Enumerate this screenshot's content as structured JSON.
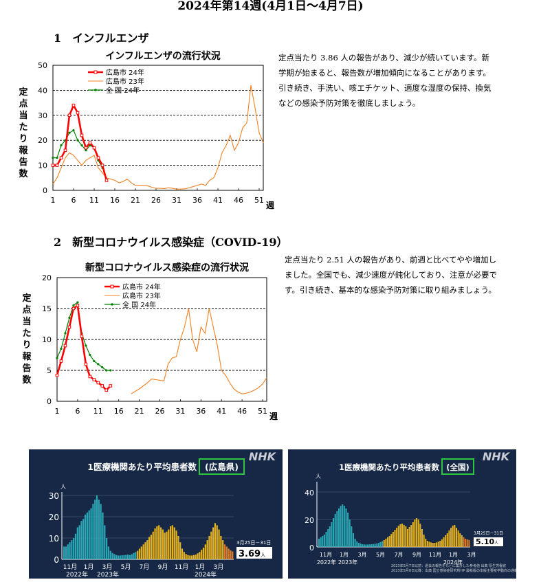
{
  "title": "2024年第14週(4月1日〜4月7日)",
  "section1": {
    "heading": "1　インフルエンザ",
    "paragraph": "定点当たり 3.86 人の報告があり、減少が続いています。新学期が始まると、報告数が増加傾向になることがあります。引き続き、手洗い、咳エチケット、適度な湿度の保持、換気などの感染予防対策を徹底しましょう。"
  },
  "section2": {
    "heading": "2　新型コロナウイルス感染症（COVID-19）",
    "paragraph": "定点当たり 2.51 人の報告があり、前週と比べてやや増加しました。全国でも、減少速度が鈍化しており、注意が必要です。引き続き、基本的な感染予防対策に取り組みましょう。"
  },
  "chart_data": [
    {
      "type": "line",
      "title": "インフルエンザの流行状況",
      "ylabel": "定点当たり報告数",
      "xlabel": "週",
      "ylim": [
        0,
        50
      ],
      "yticks": [
        0,
        10,
        20,
        30,
        40,
        50
      ],
      "xticks": [
        1,
        6,
        11,
        16,
        21,
        26,
        31,
        36,
        41,
        46,
        51
      ],
      "series": [
        {
          "name": "広島市 24年",
          "color": "#ff0000",
          "x": [
            1,
            2,
            3,
            4,
            5,
            6,
            7,
            8,
            9,
            10,
            11,
            12,
            13,
            14
          ],
          "y": [
            10,
            10,
            13,
            16,
            30,
            34,
            31,
            22,
            17,
            19,
            17,
            13,
            10,
            4
          ]
        },
        {
          "name": "広島市 23年",
          "color": "#f08020",
          "x": [
            1,
            2,
            3,
            4,
            5,
            6,
            7,
            8,
            9,
            10,
            11,
            12,
            13,
            14,
            15,
            16,
            17,
            18,
            19,
            20,
            21,
            22,
            23,
            24,
            25,
            26,
            27,
            28,
            29,
            30,
            31,
            32,
            33,
            34,
            35,
            36,
            37,
            38,
            39,
            40,
            41,
            42,
            43,
            44,
            45,
            46,
            47,
            48,
            49,
            50,
            51,
            52
          ],
          "y": [
            2.5,
            5,
            9,
            13,
            15,
            14,
            12,
            10,
            12,
            13,
            14,
            9,
            7,
            5,
            4.5,
            4,
            3,
            3.5,
            4.5,
            3,
            2,
            2,
            2,
            1.8,
            1.2,
            0.8,
            0.8,
            0.7,
            1,
            0.8,
            0.5,
            0.5,
            0.6,
            1,
            1.5,
            2,
            2.5,
            2,
            4,
            5,
            9,
            15,
            18,
            22,
            16,
            19,
            25,
            27,
            42,
            33,
            23,
            19
          ]
        },
        {
          "name": "全 国 24年",
          "color": "#008000",
          "x": [
            1,
            2,
            3,
            4,
            5,
            6,
            7,
            8,
            9,
            10,
            11,
            12,
            13
          ],
          "y": [
            13,
            13,
            18,
            20,
            23,
            24,
            20,
            18,
            16,
            18,
            17,
            12,
            9
          ]
        }
      ]
    },
    {
      "type": "line",
      "title": "新型コロナウイルス感染症の流行状況",
      "ylabel": "定点当たり報告数",
      "xlabel": "週",
      "ylim": [
        0,
        20
      ],
      "yticks": [
        0,
        5,
        10,
        15,
        20
      ],
      "xticks": [
        1,
        6,
        11,
        16,
        21,
        26,
        31,
        36,
        41,
        46,
        51
      ],
      "series": [
        {
          "name": "広島市 24年",
          "color": "#ff0000",
          "x": [
            1,
            2,
            3,
            4,
            5,
            6,
            7,
            8,
            9,
            10,
            11,
            12,
            13,
            14
          ],
          "y": [
            4.2,
            6.5,
            9,
            12,
            15,
            15.5,
            10.5,
            6,
            4,
            3.5,
            3,
            2.5,
            1.8,
            2.5
          ]
        },
        {
          "name": "広島市 23年",
          "color": "#f08020",
          "x": [
            19,
            20,
            21,
            22,
            23,
            24,
            25,
            26,
            27,
            28,
            29,
            30,
            31,
            32,
            33,
            34,
            35,
            36,
            37,
            38,
            39,
            40,
            41,
            42,
            43,
            44,
            45,
            46,
            47,
            48,
            49,
            50,
            51,
            52
          ],
          "y": [
            1.2,
            1.6,
            2,
            2.5,
            3,
            3.6,
            3.5,
            3.4,
            3.3,
            6,
            7,
            7.2,
            10,
            12,
            15,
            10,
            8,
            12,
            11,
            15,
            12,
            9,
            5,
            4.2,
            3,
            2,
            1.5,
            1.2,
            1.3,
            1.5,
            1.8,
            2.2,
            2.8,
            3.8
          ]
        },
        {
          "name": "全 国 24年",
          "color": "#008000",
          "x": [
            1,
            2,
            3,
            4,
            5,
            6,
            7,
            8,
            9,
            10,
            11,
            12,
            13,
            14
          ],
          "y": [
            7,
            8.5,
            11,
            13.5,
            15.5,
            16,
            11,
            9,
            7.5,
            6.5,
            6,
            5.5,
            5,
            5
          ]
        }
      ]
    }
  ],
  "nhk_left": {
    "logo": "NHK",
    "title": "1医療機関あたり平均患者数",
    "region": "(広島県)",
    "unit": "人",
    "yticks": [
      "30",
      "20",
      "10",
      "0"
    ],
    "ymax": 30,
    "month_labels": [
      "11月",
      "1月",
      "3月",
      "5月",
      "7月",
      "9月",
      "11月",
      "1月",
      "3月"
    ],
    "year_labels": [
      "2022年",
      "2023年",
      "2024年"
    ],
    "date_label": "3月25日－31日",
    "value_label": "3.69",
    "value_unit": "人",
    "colors": {
      "bg": "#162845",
      "teal": "#2aa8b6",
      "yellow": "#e6b31e",
      "orange": "#e07d26",
      "frame": "#2ec63e"
    },
    "bars": [
      6,
      6,
      7,
      8,
      9,
      10,
      12,
      15,
      16,
      18,
      19,
      21,
      22,
      23,
      24,
      26,
      28,
      30,
      28,
      26,
      22,
      16,
      10,
      6,
      4,
      3,
      2.5,
      2,
      1.8,
      1.8,
      1.9,
      2,
      2.1,
      2.2,
      2,
      2.4,
      3,
      3.5,
      4,
      5,
      6,
      7,
      8,
      9,
      10.5,
      11.5,
      13,
      14.5,
      15.5,
      16,
      15,
      14,
      12.5,
      13,
      14,
      15.5,
      16,
      15,
      13.5,
      11,
      8,
      5,
      3.5,
      2.5,
      2,
      1.8,
      1.8,
      2,
      2.2,
      2.8,
      3.5,
      4.5,
      5.5,
      7,
      9,
      11,
      13,
      15,
      17,
      16,
      14,
      11,
      9,
      7,
      6,
      5,
      4.2,
      3.7
    ],
    "segments": [
      {
        "from": 0,
        "to": 24,
        "color": "teal"
      },
      {
        "from": 25,
        "to": 37,
        "color": "teal"
      },
      {
        "from": 38,
        "to": 82,
        "color": "yellow"
      },
      {
        "from": 83,
        "to": 87,
        "color": "orange"
      }
    ]
  },
  "nhk_right": {
    "logo": "NHK",
    "title": "1医療機関あたり平均患者数",
    "region": "(全国)",
    "unit": "人",
    "yticks": [
      "40",
      "20",
      "0"
    ],
    "ymax": 45,
    "month_labels": [
      "11月",
      "1月",
      "3月",
      "5月",
      "7月",
      "9月",
      "11月",
      "1月",
      "3月"
    ],
    "year_labels": [
      "2022年",
      "2023年",
      "2024年"
    ],
    "date_label": "3月25日－31日",
    "value_label": "5.10",
    "value_unit": "人",
    "source_lines": [
      "2023年5月7日以前：過去の報告をもとに集計した参考値 出典 厚生労働省",
      "2023年5月8日以降：出典 国立感染症研究所HP 最新版の本版主要疫学動向の通報値"
    ],
    "colors": {
      "bg": "#162845",
      "teal": "#2aa8b6",
      "yellow": "#e6b31e",
      "orange": "#e07d26",
      "frame": "#2ec63e"
    },
    "bars": [
      6,
      7,
      8,
      9,
      11,
      13,
      15,
      18,
      21,
      24,
      26,
      28,
      30,
      31,
      30,
      28,
      25,
      20,
      15,
      10,
      6,
      4,
      3,
      2.5,
      2,
      1.9,
      1.8,
      1.8,
      1.9,
      2,
      2.1,
      2.3,
      2.6,
      3,
      3.5,
      4.2,
      5,
      6,
      7,
      8,
      9.5,
      11,
      12.5,
      14,
      15.5,
      16.5,
      17,
      16,
      15,
      13,
      14.5,
      16,
      18,
      20,
      21,
      20,
      17,
      13,
      9,
      6,
      4.5,
      3.8,
      3.3,
      3,
      3,
      3.3,
      3.8,
      4.5,
      5.5,
      7,
      8.5,
      10,
      12,
      14,
      15.5,
      16,
      14,
      12,
      10,
      8.5,
      7,
      6,
      5.5,
      5.1
    ],
    "segments": [
      {
        "from": 0,
        "to": 24,
        "color": "teal"
      },
      {
        "from": 25,
        "to": 35,
        "color": "teal"
      },
      {
        "from": 36,
        "to": 79,
        "color": "yellow"
      },
      {
        "from": 80,
        "to": 83,
        "color": "orange"
      }
    ]
  }
}
